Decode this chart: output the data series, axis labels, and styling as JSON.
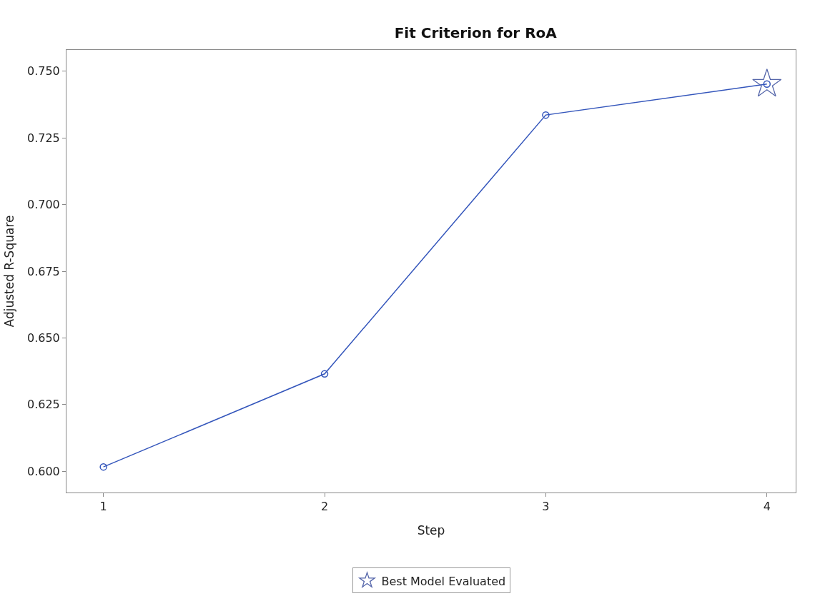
{
  "chart_data": {
    "type": "line",
    "title": "Fit Criterion for RoA",
    "xlabel": "Step",
    "ylabel": "Adjusted R-Square",
    "x": [
      1,
      2,
      3,
      4
    ],
    "series": [
      {
        "color": "#3355bb",
        "values": [
          0.6016,
          0.6365,
          0.7336,
          0.7452
        ],
        "marker": "circle",
        "line_style": "solid"
      },
      {
        "type": "scatter",
        "name": "Best Model Evaluated",
        "color": "#5566aa",
        "x": [
          4
        ],
        "values": [
          0.7452
        ],
        "marker": "star"
      }
    ],
    "xlim": [
      0.833,
      4.13
    ],
    "xticks": [
      1,
      2,
      3,
      4
    ],
    "ylim": [
      0.592,
      0.758
    ],
    "yticks": [
      {
        "value": 0.6,
        "label": "0.600"
      },
      {
        "value": 0.625,
        "label": "0.625"
      },
      {
        "value": 0.65,
        "label": "0.650"
      },
      {
        "value": 0.675,
        "label": "0.675"
      },
      {
        "value": 0.7,
        "label": "0.700"
      },
      {
        "value": 0.725,
        "label": "0.725"
      },
      {
        "value": 0.75,
        "label": "0.750"
      }
    ],
    "legend": "bottom"
  }
}
